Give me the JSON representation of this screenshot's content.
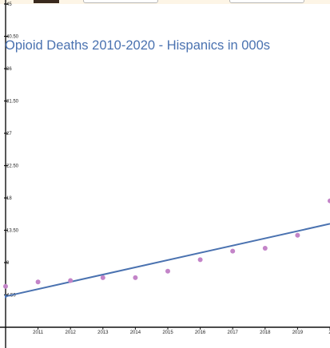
{
  "chart_data": {
    "type": "scatter",
    "title": "Opioid Deaths 2010-2020 - Hispanics in 000s",
    "xlabel": "",
    "ylabel": "",
    "x_ticks": [
      "2011",
      "2012",
      "2013",
      "2014",
      "2015",
      "2016",
      "2017",
      "2018",
      "2019",
      "2"
    ],
    "y_ticks": [
      "45",
      "40.50",
      "36",
      "31.50",
      "27",
      "22.50",
      "18",
      "13.50",
      "9",
      "4.50"
    ],
    "xlim": [
      2010,
      2020
    ],
    "ylim": [
      0,
      45
    ],
    "grid": false,
    "x": [
      2010,
      2011,
      2012,
      2013,
      2014,
      2015,
      2016,
      2017,
      2018,
      2019,
      2020
    ],
    "series": [
      {
        "values": [
          5.7,
          6.3,
          6.5,
          6.9,
          6.9,
          7.8,
          9.4,
          10.6,
          11.0,
          12.8,
          17.6
        ]
      }
    ],
    "trendline": {
      "y_start": 4.3,
      "y_end": 14.4
    },
    "colors": {
      "points": "#c384c8",
      "trendline": "#4a72b0",
      "axis": "#111111"
    }
  }
}
